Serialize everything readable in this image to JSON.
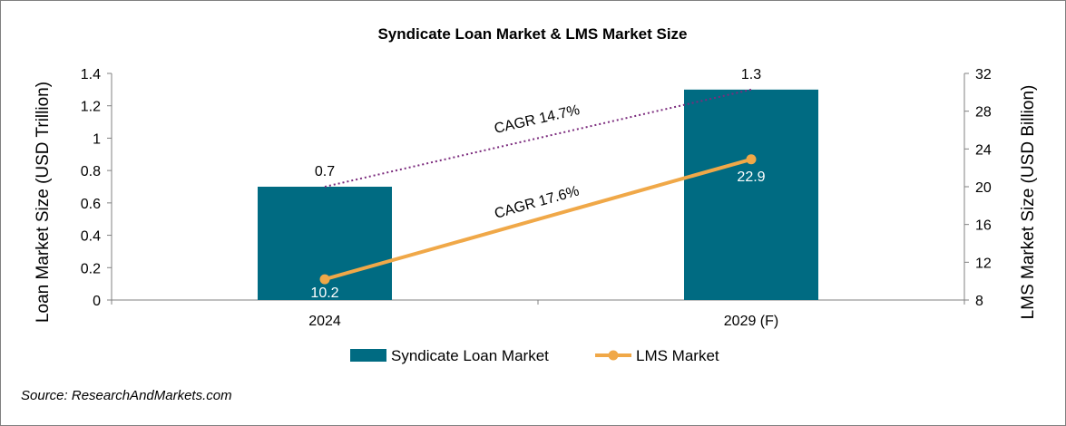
{
  "chart_data": {
    "type": "bar+line",
    "title": "Syndicate Loan Market & LMS Market Size",
    "categories": [
      "2024",
      "2029 (F)"
    ],
    "series": [
      {
        "name": "Syndicate Loan Market",
        "type": "bar",
        "axis": "left",
        "values": [
          0.7,
          1.3
        ],
        "labels": [
          "0.7",
          "1.3"
        ],
        "color": "#006b82"
      },
      {
        "name": "LMS Market",
        "type": "line",
        "axis": "right",
        "values": [
          10.2,
          22.9
        ],
        "labels": [
          "10.2",
          "22.9"
        ],
        "color": "#f0a848"
      }
    ],
    "ylabel_left": "Loan Market Size (USD Trillion)",
    "ylabel_right": "LMS Market Size (USD Billion)",
    "ylim_left": [
      0,
      1.4
    ],
    "yticks_left": [
      "0",
      "0.2",
      "0.4",
      "0.6",
      "0.8",
      "1",
      "1.2",
      "1.4"
    ],
    "ylim_right": [
      8,
      32
    ],
    "yticks_right": [
      "8",
      "12",
      "16",
      "20",
      "24",
      "28",
      "32"
    ],
    "annotations": [
      {
        "text": "CAGR 14.7%",
        "color": "#7b2b7d"
      },
      {
        "text": "CAGR 17.6%"
      }
    ],
    "grid": false,
    "legend_position": "bottom",
    "source": "Source: ResearchAndMarkets.com"
  }
}
